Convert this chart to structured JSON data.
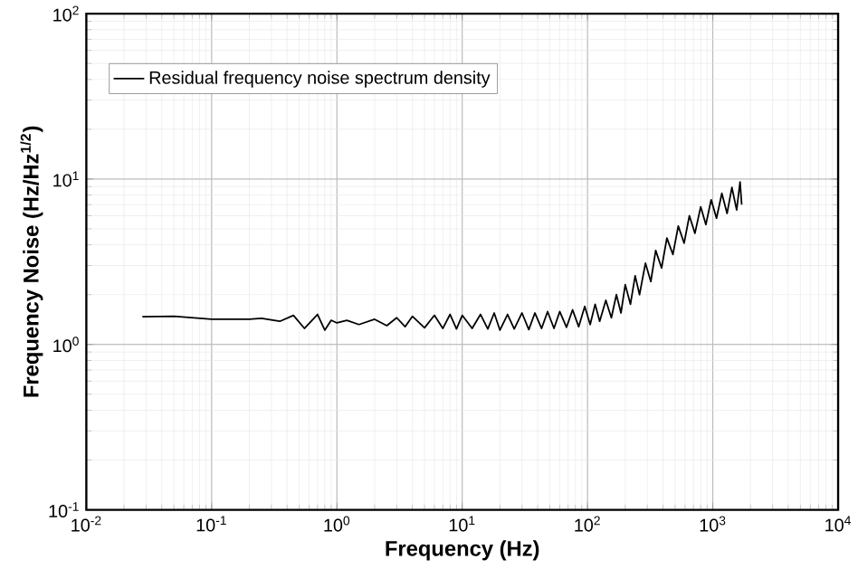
{
  "chart_data": {
    "type": "line",
    "xlabel": "Frequency (Hz)",
    "ylabel": "Frequency Noise (Hz/Hz$^{1/2}$)",
    "log": "xy",
    "grid": true,
    "legend": "top left",
    "marker": "none",
    "line_style": "solid",
    "xlim": [
      0.01,
      10000
    ],
    "ylim": [
      0.1,
      100
    ],
    "xticks": [
      {
        "value": 0.01,
        "label": "10$^{-2}$"
      },
      {
        "value": 0.1,
        "label": "10$^{-1}$"
      },
      {
        "value": 1,
        "label": "10$^{0}$"
      },
      {
        "value": 10,
        "label": "10$^{1}$"
      },
      {
        "value": 100,
        "label": "10$^{2}$"
      },
      {
        "value": 1000,
        "label": "10$^{3}$"
      },
      {
        "value": 10000,
        "label": "10$^{4}$"
      }
    ],
    "yticks": [
      {
        "value": 0.1,
        "label": "10$^{-1}$"
      },
      {
        "value": 1,
        "label": "10$^{0}$"
      },
      {
        "value": 10,
        "label": "10$^{1}$"
      },
      {
        "value": 100,
        "label": "10$^{2}$"
      }
    ],
    "series": [
      {
        "name": "Residual frequency noise spectrum density",
        "color": "#000000",
        "x": [
          0.028,
          0.05,
          0.1,
          0.2,
          0.25,
          0.35,
          0.45,
          0.55,
          0.7,
          0.8,
          0.9,
          1.0,
          1.2,
          1.5,
          2,
          2.5,
          3,
          3.5,
          4,
          5,
          6,
          7,
          8,
          9,
          10,
          12,
          14,
          16,
          18,
          20,
          23,
          26,
          30,
          34,
          38,
          43,
          48,
          54,
          60,
          68,
          76,
          85,
          95,
          105,
          115,
          125,
          140,
          155,
          170,
          185,
          200,
          220,
          240,
          260,
          290,
          320,
          350,
          390,
          430,
          480,
          530,
          590,
          650,
          720,
          800,
          880,
          970,
          1070,
          1180,
          1300,
          1420,
          1550,
          1650,
          1700
        ],
        "values": [
          1.47,
          1.48,
          1.42,
          1.42,
          1.44,
          1.38,
          1.5,
          1.25,
          1.52,
          1.22,
          1.4,
          1.35,
          1.4,
          1.32,
          1.42,
          1.3,
          1.45,
          1.28,
          1.48,
          1.26,
          1.5,
          1.25,
          1.52,
          1.24,
          1.5,
          1.25,
          1.52,
          1.24,
          1.55,
          1.22,
          1.52,
          1.24,
          1.55,
          1.23,
          1.55,
          1.25,
          1.58,
          1.25,
          1.58,
          1.27,
          1.62,
          1.28,
          1.7,
          1.32,
          1.75,
          1.38,
          1.85,
          1.45,
          2.0,
          1.55,
          2.3,
          1.75,
          2.6,
          2.0,
          3.1,
          2.4,
          3.7,
          2.9,
          4.4,
          3.5,
          5.2,
          4.1,
          6.0,
          4.7,
          6.8,
          5.3,
          7.5,
          5.8,
          8.2,
          6.2,
          8.9,
          6.5,
          9.6,
          7.0
        ]
      }
    ]
  }
}
